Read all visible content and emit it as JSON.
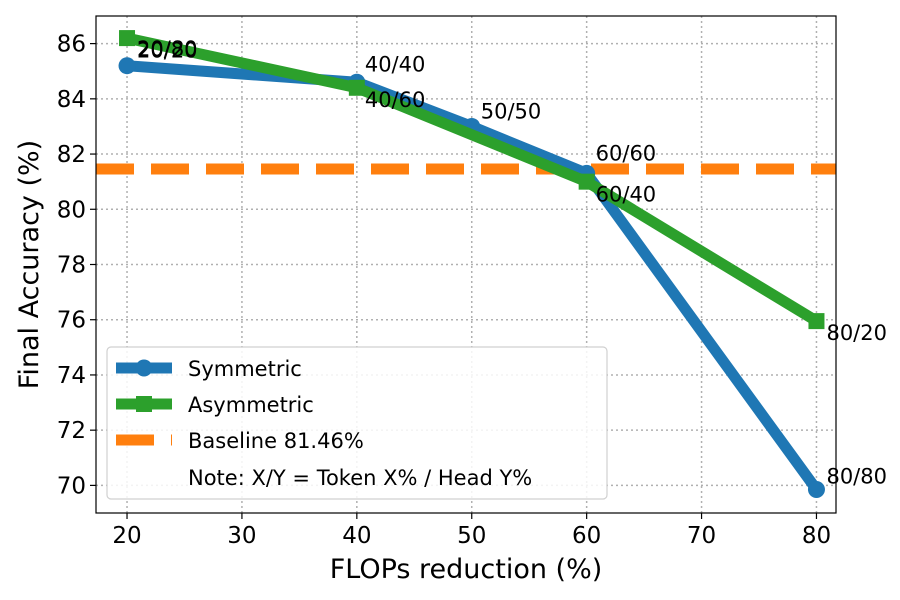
{
  "chart_data": {
    "type": "line",
    "title": "",
    "xlabel": "FLOPs reduction (%)",
    "ylabel": "Final Accuracy (%)",
    "xlim": [
      17.3,
      81.7
    ],
    "ylim": [
      69.0,
      87.0
    ],
    "xticks": [
      20,
      30,
      40,
      50,
      60,
      70,
      80
    ],
    "yticks": [
      70,
      72,
      74,
      76,
      78,
      80,
      82,
      84,
      86
    ],
    "grid": true,
    "legend_position": "bottom-left",
    "series": [
      {
        "name": "Symmetric",
        "color": "#1f77b4",
        "marker": "circle",
        "x": [
          20,
          40,
          50,
          60,
          80
        ],
        "y": [
          85.2,
          84.6,
          83.0,
          81.3,
          69.85
        ],
        "labels": [
          "20/20",
          "40/40",
          "50/50",
          "60/60",
          "80/80"
        ]
      },
      {
        "name": "Asymmetric",
        "color": "#2ca02c",
        "marker": "square",
        "x": [
          20,
          40,
          60,
          80
        ],
        "y": [
          86.2,
          84.4,
          81.0,
          75.95
        ],
        "labels": [
          "20/80",
          "40/60",
          "60/40",
          "80/20"
        ]
      }
    ],
    "baseline": {
      "name": "Baseline 81.46%",
      "value": 81.46,
      "color": "#ff7f0e"
    },
    "note": "Note: X/Y = Token X% / Head Y%"
  }
}
